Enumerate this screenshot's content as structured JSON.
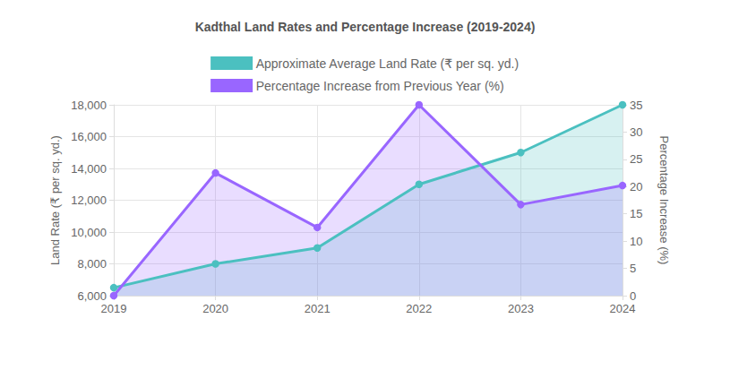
{
  "chart_data": {
    "type": "line",
    "title": "Kadthal Land Rates and Percentage Increase (2019-2024)",
    "categories": [
      "2019",
      "2020",
      "2021",
      "2022",
      "2023",
      "2024"
    ],
    "series": [
      {
        "name": "Approximate Average Land Rate (₹ per sq. yd.)",
        "color": "#4bc0c0",
        "axis": "y",
        "values": [
          6500,
          8000,
          9000,
          13000,
          15000,
          18000
        ]
      },
      {
        "name": "Percentage Increase from Previous Year (%)",
        "color": "#9966ff",
        "axis": "y2",
        "values": [
          0,
          22.5,
          12.5,
          35,
          16.7,
          20.2
        ]
      }
    ],
    "y_label": "Land Rate (₹ per sq. yd.)",
    "y2_label": "Percentage Increase (%)",
    "ylim": [
      6000,
      18000
    ],
    "yticks": [
      {
        "value": 6000,
        "label": "6,000"
      },
      {
        "value": 8000,
        "label": "8,000"
      },
      {
        "value": 10000,
        "label": "10,000"
      },
      {
        "value": 12000,
        "label": "12,000"
      },
      {
        "value": 14000,
        "label": "14,000"
      },
      {
        "value": 16000,
        "label": "16,000"
      },
      {
        "value": 18000,
        "label": "18,000"
      }
    ],
    "y2lim": [
      0,
      35
    ],
    "y2ticks": [
      0,
      5,
      10,
      15,
      20,
      25,
      30,
      35
    ],
    "grid": true,
    "legend": "top",
    "marker": "circle"
  }
}
